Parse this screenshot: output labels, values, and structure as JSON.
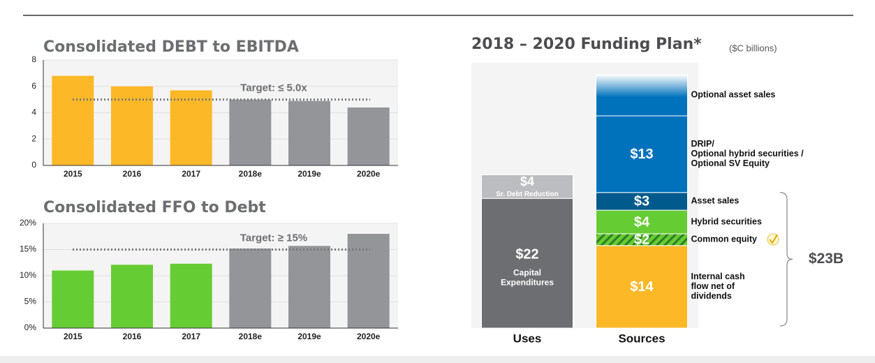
{
  "chart_data": [
    {
      "type": "bar",
      "title": "Consolidated DEBT to EBITDA",
      "categories": [
        "2015",
        "2016",
        "2017",
        "2018e",
        "2019e",
        "2020e"
      ],
      "values": [
        6.8,
        6.0,
        5.7,
        5.0,
        4.9,
        4.4
      ],
      "colors": [
        "#FDB827",
        "#FDB827",
        "#FDB827",
        "#939598",
        "#939598",
        "#939598"
      ],
      "ylim": [
        0,
        8
      ],
      "yticks": [
        0,
        2,
        4,
        6,
        8
      ],
      "grid": true,
      "target": 5,
      "target_label": "Target: ≤ 5.0x"
    },
    {
      "type": "bar",
      "title": "Consolidated FFO to Debt",
      "categories": [
        "2015",
        "2016",
        "2017",
        "2018e",
        "2019e",
        "2020e"
      ],
      "values": [
        11,
        12.1,
        12.3,
        15.2,
        15.7,
        18
      ],
      "colors": [
        "#66CC33",
        "#66CC33",
        "#66CC33",
        "#939598",
        "#939598",
        "#939598"
      ],
      "ylim": [
        0,
        20
      ],
      "yticks": [
        {
          "value": 0,
          "label": "0%"
        },
        {
          "value": 5,
          "label": "5%"
        },
        {
          "value": 10,
          "label": "10%"
        },
        {
          "value": 15,
          "label": "15%"
        },
        {
          "value": 20,
          "label": "20%"
        }
      ],
      "grid": true,
      "target": 15,
      "target_label": "Target: ≥ 15%"
    },
    {
      "type": "stacked_bar",
      "title": "2018 – 2020 Funding Plan*",
      "subtitle": "($C billions)",
      "categories": [
        "Uses",
        "Sources"
      ],
      "ylim": [
        0,
        45
      ],
      "total": 23,
      "total_label": "$23B",
      "series": [
        {
          "name": [
            "Capital",
            "Expenditures"
          ],
          "color": "#6D6E71",
          "values": [
            22,
            null
          ],
          "value_labels": [
            "$22",
            null
          ],
          "label_position": "inside"
        },
        {
          "name": [
            "Sr. Debt Reduction"
          ],
          "color": "#BCBDC0",
          "values": [
            4,
            null
          ],
          "value_labels": [
            "$4",
            null
          ],
          "label_position": "inside"
        },
        {
          "name": [
            "Internal cash",
            "flow net of",
            "dividends"
          ],
          "color": "#FDB827",
          "values": [
            null,
            14
          ],
          "value_labels": [
            null,
            "$14"
          ],
          "label_position": "right"
        },
        {
          "name": [
            "Common equity"
          ],
          "color": "#66CC33",
          "values": [
            null,
            2
          ],
          "value_labels": [
            null,
            "$2"
          ],
          "label_position": "right",
          "hatch": true
        },
        {
          "name": [
            "Hybrid securities"
          ],
          "color": "#66CC33",
          "values": [
            null,
            4
          ],
          "value_labels": [
            null,
            "$4"
          ],
          "label_position": "right"
        },
        {
          "name": [
            "Asset sales"
          ],
          "color": "#005A8C",
          "values": [
            null,
            3
          ],
          "value_labels": [
            null,
            "$3"
          ],
          "label_position": "right"
        },
        {
          "name": [
            "DRIP/",
            "Optional hybrid securities /",
            "Optional SV Equity"
          ],
          "color": "#0072BC",
          "values": [
            null,
            13
          ],
          "value_labels": [
            null,
            "$13"
          ],
          "label_position": "right"
        },
        {
          "name": [
            "Optional asset sales"
          ],
          "color": "#0072BC",
          "values": [
            null,
            7
          ],
          "label_position": "right",
          "gradient": true
        }
      ]
    }
  ]
}
